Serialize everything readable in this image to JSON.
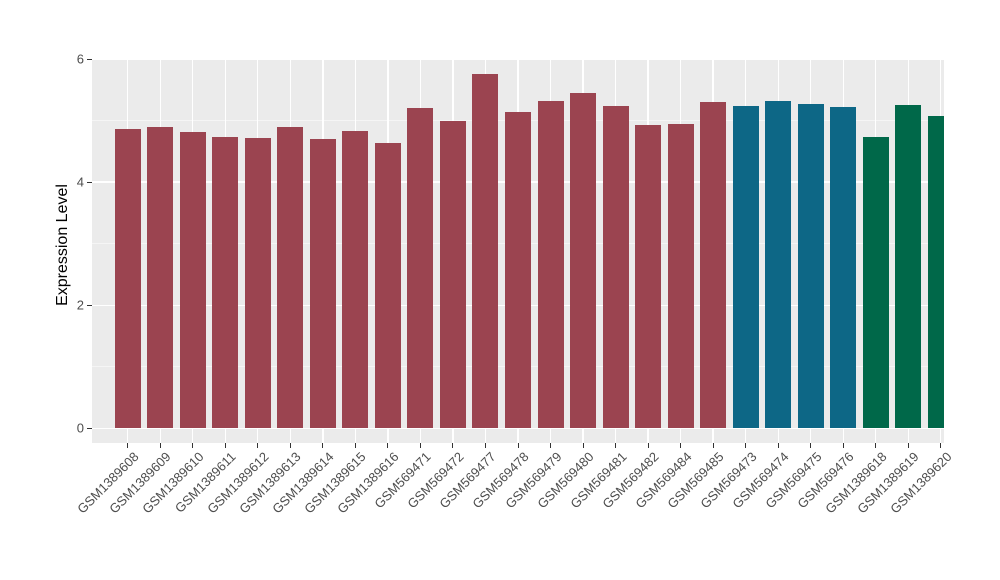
{
  "style": {
    "figure_background": "#FFFFFF",
    "panel_background": "#EBEBEB",
    "grid_major_color": "#FFFFFF",
    "grid_minor_color": "#F7F7F7",
    "tick_color": "#333333",
    "tick_label_color": "#4D4D4D",
    "axis_title_color": "#000000"
  },
  "chart_data": {
    "type": "bar",
    "title": "",
    "xlabel": "",
    "ylabel": "Expression Level",
    "ylim": [
      0,
      6
    ],
    "yticks": [
      0,
      2,
      4,
      6
    ],
    "yticks_minor": [
      1,
      3,
      5
    ],
    "grid": true,
    "legend_position": "none",
    "categories": [
      "GSM1389608",
      "GSM1389609",
      "GSM1389610",
      "GSM1389611",
      "GSM1389612",
      "GSM1389613",
      "GSM1389614",
      "GSM1389615",
      "GSM1389616",
      "GSM569471",
      "GSM569472",
      "GSM569477",
      "GSM569478",
      "GSM569479",
      "GSM569480",
      "GSM569481",
      "GSM569482",
      "GSM569484",
      "GSM569485",
      "GSM569473",
      "GSM569474",
      "GSM569475",
      "GSM569476",
      "GSM1389618",
      "GSM1389619",
      "GSM1389620"
    ],
    "values": [
      4.87,
      4.89,
      4.81,
      4.74,
      4.72,
      4.9,
      4.7,
      4.83,
      4.64,
      5.2,
      5.0,
      5.76,
      5.14,
      5.31,
      5.45,
      5.24,
      4.92,
      4.94,
      5.3,
      5.24,
      5.32,
      5.27,
      5.22,
      4.73,
      5.26,
      5.08
    ],
    "bar_colors": [
      "#9B4450",
      "#9B4450",
      "#9B4450",
      "#9B4450",
      "#9B4450",
      "#9B4450",
      "#9B4450",
      "#9B4450",
      "#9B4450",
      "#9B4450",
      "#9B4450",
      "#9B4450",
      "#9B4450",
      "#9B4450",
      "#9B4450",
      "#9B4450",
      "#9B4450",
      "#9B4450",
      "#9B4450",
      "#0D6786",
      "#0D6786",
      "#0D6786",
      "#0D6786",
      "#006849",
      "#006849",
      "#006849"
    ],
    "palette": {
      "maroon": "#9B4450",
      "blue": "#0D6786",
      "green": "#006849"
    }
  }
}
